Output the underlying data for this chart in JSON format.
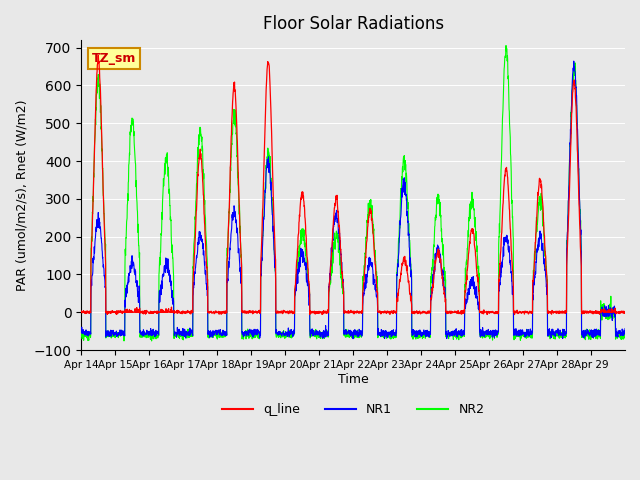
{
  "title": "Floor Solar Radiations",
  "xlabel": "Time",
  "ylabel": "PAR (umol/m2/s), Rnet (W/m2)",
  "ylim": [
    -100,
    720
  ],
  "background_color": "#e8e8e8",
  "plot_bg_color": "#e8e8e8",
  "legend_labels": [
    "q_line",
    "NR1",
    "NR2"
  ],
  "legend_colors": [
    "red",
    "blue",
    "lime"
  ],
  "annotation_text": "TZ_sm",
  "annotation_bg": "#ffff99",
  "annotation_border": "#cc8800",
  "annotation_text_color": "#cc0000",
  "xtick_labels": [
    "Apr 14",
    "Apr 15",
    "Apr 16",
    "Apr 17",
    "Apr 18",
    "Apr 19",
    "Apr 20",
    "Apr 21",
    "Apr 22",
    "Apr 23",
    "Apr 24",
    "Apr 25",
    "Apr 26",
    "Apr 27",
    "Apr 28",
    "Apr 29"
  ],
  "n_days": 16,
  "points_per_day": 144,
  "day_peaks_q": [
    670,
    0,
    0,
    420,
    600,
    665,
    315,
    300,
    270,
    140,
    160,
    220,
    380,
    350,
    610,
    0
  ],
  "day_peaks_nr1": [
    245,
    125,
    130,
    210,
    270,
    400,
    160,
    260,
    130,
    345,
    165,
    80,
    200,
    200,
    655,
    0
  ],
  "day_peaks_nr2": [
    615,
    508,
    400,
    480,
    520,
    420,
    210,
    200,
    295,
    400,
    295,
    300,
    700,
    300,
    650,
    0
  ],
  "night_val_q": 0,
  "night_val_nr": -55,
  "night_val_nr2": -60
}
